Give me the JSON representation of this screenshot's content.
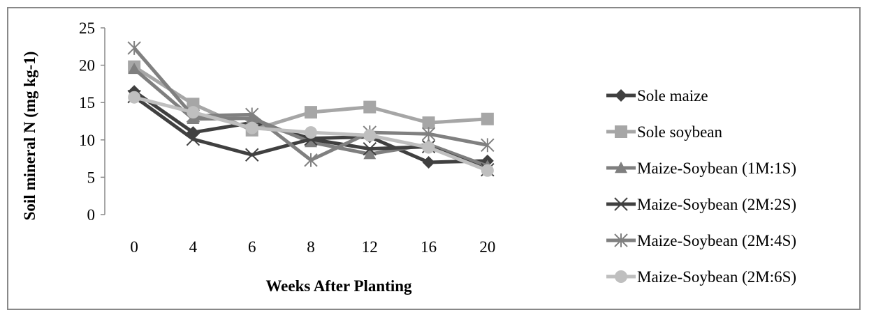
{
  "chart_data": {
    "type": "line",
    "title": "",
    "xlabel": "Weeks After Planting",
    "ylabel": "Soil mineral N (mg kg-1)",
    "categories": [
      "0",
      "4",
      "6",
      "8",
      "12",
      "16",
      "20"
    ],
    "ylim": [
      0,
      25
    ],
    "yticks": [
      0,
      5,
      10,
      15,
      20,
      25
    ],
    "grid": false,
    "legend_position": "right",
    "series": [
      {
        "name": "Sole maize",
        "values": [
          16.5,
          11.0,
          12.3,
          10.2,
          10.4,
          7.0,
          7.2
        ],
        "color": "#404040",
        "marker": "diamond",
        "icon": "diamond-marker"
      },
      {
        "name": "Sole soybean",
        "values": [
          19.8,
          14.8,
          11.3,
          13.7,
          14.4,
          12.3,
          12.8
        ],
        "color": "#a6a6a6",
        "marker": "square",
        "icon": "square-marker"
      },
      {
        "name": "Maize-Soybean (1M:1S)",
        "values": [
          19.5,
          12.8,
          12.9,
          9.7,
          8.1,
          9.4,
          6.5
        ],
        "color": "#7f7f7f",
        "marker": "triangle",
        "icon": "triangle-marker"
      },
      {
        "name": "Maize-Soybean (2M:2S)",
        "values": [
          15.8,
          10.1,
          8.0,
          10.1,
          8.8,
          9.1,
          6.0
        ],
        "color": "#404040",
        "marker": "x",
        "icon": "x-marker"
      },
      {
        "name": "Maize-Soybean (2M:4S)",
        "values": [
          22.3,
          13.2,
          13.4,
          7.3,
          11.0,
          10.8,
          9.3
        ],
        "color": "#808080",
        "marker": "star",
        "icon": "asterisk-marker"
      },
      {
        "name": "Maize-Soybean (2M:6S)",
        "values": [
          15.7,
          13.7,
          11.6,
          11.0,
          10.6,
          9.0,
          5.9
        ],
        "color": "#bfbfbf",
        "marker": "circle",
        "icon": "circle-marker"
      }
    ]
  }
}
